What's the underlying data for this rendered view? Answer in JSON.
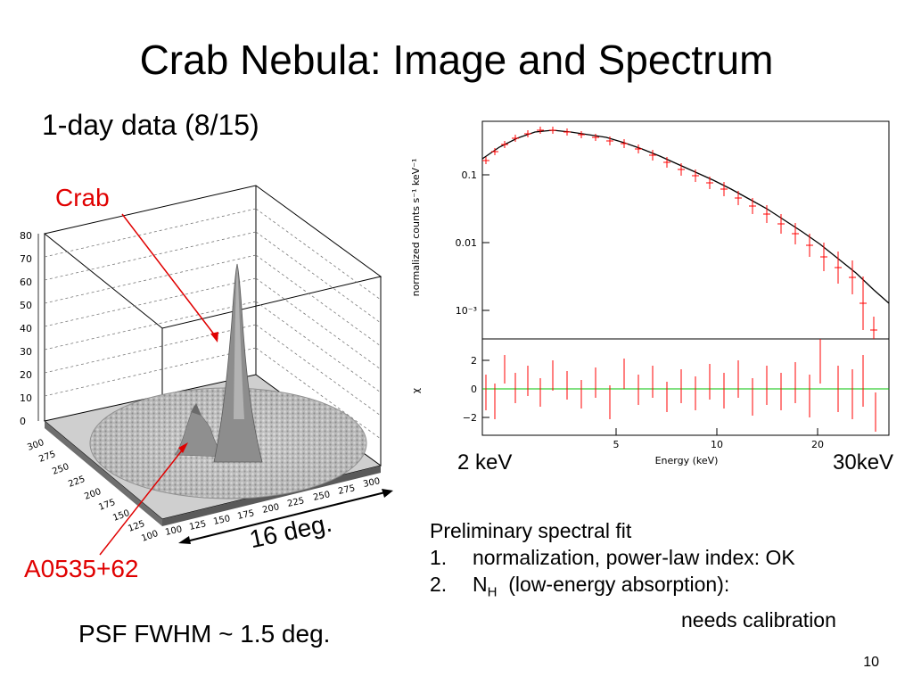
{
  "slide": {
    "title": "Crab Nebula:  Image and Spectrum",
    "subtitle": "1-day data (8/15)",
    "page_number": "10"
  },
  "image_panel": {
    "crab_label": "Crab",
    "source_label": "A0535+62",
    "extent_label": "16 deg.",
    "psf_label": "PSF FWHM ~ 1.5 deg.",
    "z_ticks": [
      "0",
      "10",
      "20",
      "30",
      "40",
      "50",
      "60",
      "70",
      "80"
    ],
    "x_ticks": [
      "100",
      "125",
      "150",
      "175",
      "200",
      "225",
      "250",
      "275",
      "300"
    ],
    "y_ticks": [
      "100",
      "125",
      "150",
      "175",
      "200",
      "225",
      "250",
      "275",
      "300"
    ]
  },
  "spectrum_panel": {
    "ylabel_top": "normalized counts s⁻¹ keV⁻¹",
    "ylabel_bottom": "χ",
    "xlabel": "Energy (keV)",
    "y_ticks_top": [
      "0.1",
      "0.01",
      "10⁻³"
    ],
    "y_ticks_bottom": [
      "2",
      "0",
      "−2"
    ],
    "x_ticks": [
      "5",
      "10",
      "20"
    ],
    "label_low": "2 keV",
    "label_high": "30keV",
    "data_color": "#ff0000",
    "model_color": "#000000",
    "zero_line_color": "#00c000"
  },
  "fit_notes": {
    "heading": "Preliminary spectral fit",
    "items": [
      {
        "num": "1.",
        "text": "normalization, power-law index: OK"
      },
      {
        "num": "2.",
        "text_main": "N",
        "text_sub": "H",
        "text_rest": "  (low-energy absorption):"
      }
    ],
    "continuation": "needs calibration"
  }
}
